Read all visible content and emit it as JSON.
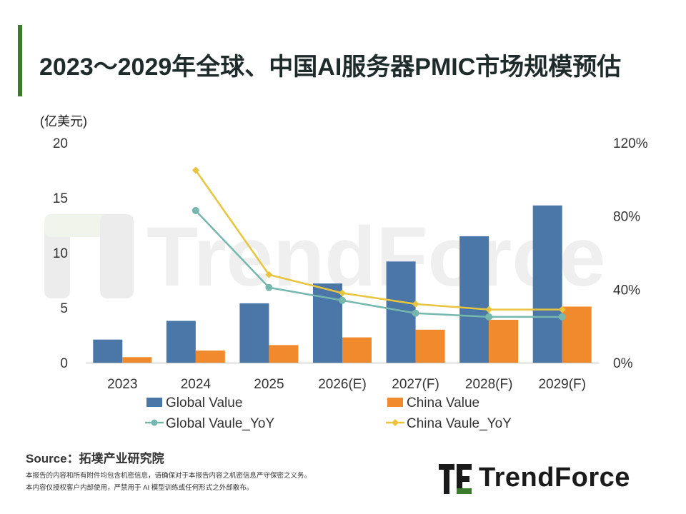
{
  "header": {
    "title": "2023～2029年全球、中国AI服务器PMIC市场规模预估"
  },
  "footer": {
    "source_label": "Source：拓墣产业研究院",
    "disclaimer_1": "本报告的内容和所有附件均包含机密信息，请确保对于本报告内容之机密信息严守保密之义务。",
    "disclaimer_2": "本内容仅授权客户内部使用，严禁用于 AI 模型训练或任何形式之外部散布。",
    "logo_text": "TrendForce"
  },
  "watermark": "TrendForce",
  "colors": {
    "global": "#4a76a8",
    "china": "#f08a2c",
    "global_yoy": "#76b8ae",
    "china_yoy": "#e8c53c",
    "accent": "#3c7a2c"
  },
  "chart_data": {
    "type": "bar",
    "unit_label": "(亿美元)",
    "categories": [
      "2023",
      "2024",
      "2025",
      "2026(E)",
      "2027(F)",
      "2028(F)",
      "2029(F)"
    ],
    "ylim": [
      0,
      20
    ],
    "yticks": [
      "0",
      "5",
      "10",
      "15",
      "20"
    ],
    "y2lim": [
      0,
      120
    ],
    "y2ticks": [
      "0%",
      "40%",
      "80%",
      "120%"
    ],
    "series": [
      {
        "name": "Global Value",
        "kind": "bar",
        "axis": "left",
        "values": [
          2.1,
          3.8,
          5.4,
          7.2,
          9.2,
          11.5,
          14.3
        ]
      },
      {
        "name": "China Value",
        "kind": "bar",
        "axis": "left",
        "values": [
          0.5,
          1.1,
          1.6,
          2.3,
          3.0,
          3.9,
          5.1
        ]
      },
      {
        "name": "Global Vaule_YoY",
        "kind": "line",
        "axis": "right",
        "values": [
          null,
          83,
          41,
          34,
          27,
          25,
          25
        ]
      },
      {
        "name": "China Vaule_YoY",
        "kind": "line",
        "axis": "right",
        "values": [
          null,
          105,
          48,
          38,
          32,
          29,
          29
        ]
      }
    ]
  }
}
